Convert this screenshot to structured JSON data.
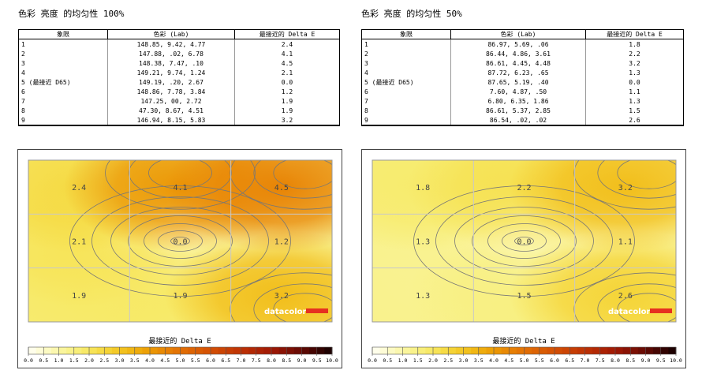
{
  "panels": [
    {
      "title": "色彩 亮度 的均匀性 100%",
      "table": {
        "headers": [
          "象限",
          "色彩 (Lab)",
          "最接近的 Delta E"
        ],
        "rows": [
          {
            "q": "1",
            "lab": "148.85,   9.42,   4.77",
            "de": "2.4"
          },
          {
            "q": "2",
            "lab": "147.88,    .02,   6.78",
            "de": "4.1"
          },
          {
            "q": "3",
            "lab": "148.38,   7.47,    .10",
            "de": "4.5"
          },
          {
            "q": "4",
            "lab": "149.21,   9.74,   1.24",
            "de": "2.1"
          },
          {
            "q": "5 (最接近 D65)",
            "lab": "149.19,    .20,   2.67",
            "de": "0.0"
          },
          {
            "q": "6",
            "lab": "148.86,   7.78,   3.84",
            "de": "1.2"
          },
          {
            "q": "7",
            "lab": "147.25,    00,   2.72",
            "de": "1.9"
          },
          {
            "q": "8",
            "lab": " 47.30,   8.67,   4.51",
            "de": "1.9"
          },
          {
            "q": "9",
            "lab": "146.94,   8.15,   5.83",
            "de": "3.2"
          }
        ]
      },
      "chart_data": {
        "type": "heatmap",
        "title": "最接近的 Delta E",
        "grid": [
          [
            2.4,
            4.1,
            4.5
          ],
          [
            2.1,
            0.0,
            1.2
          ],
          [
            1.9,
            1.9,
            3.2
          ]
        ],
        "scale_ticks": [
          "0.0",
          "0.5",
          "1.0",
          "1.5",
          "2.0",
          "2.5",
          "3.0",
          "3.5",
          "4.0",
          "4.5",
          "5.0",
          "5.5",
          "6.0",
          "6.5",
          "7.0",
          "7.5",
          "8.0",
          "8.5",
          "9.0",
          "9.5",
          "10.0"
        ],
        "range": [
          0,
          10
        ]
      },
      "logo": "datacolor"
    },
    {
      "title": "色彩 亮度 的均匀性 50%",
      "table": {
        "headers": [
          "象限",
          "色彩 (Lab)",
          "最接近的 Delta E"
        ],
        "rows": [
          {
            "q": "1",
            "lab": "86.97,   5.69,    .06",
            "de": "1.8"
          },
          {
            "q": "2",
            "lab": "86.44,   4.86,   3.61",
            "de": "2.2"
          },
          {
            "q": "3",
            "lab": "86.61,   4.45,   4.48",
            "de": "3.2"
          },
          {
            "q": "4",
            "lab": "87.72,   6.23,    .65",
            "de": "1.3"
          },
          {
            "q": "5 (最接近 D65)",
            "lab": "87.65,   5.19,    .40",
            "de": "0.0"
          },
          {
            "q": "6",
            "lab": " 7.60,   4.87,    .50",
            "de": "1.1"
          },
          {
            "q": "7",
            "lab": " 6.80,   6.35,   1.86",
            "de": "1.3"
          },
          {
            "q": "8",
            "lab": "86.61,   5.37,   2.85",
            "de": "1.5"
          },
          {
            "q": "9",
            "lab": "86.54,    .02,    .02",
            "de": "2.6"
          }
        ]
      },
      "chart_data": {
        "type": "heatmap",
        "title": "最接近的 Delta E",
        "grid": [
          [
            1.8,
            2.2,
            3.2
          ],
          [
            1.3,
            0.0,
            1.1
          ],
          [
            1.3,
            1.5,
            2.6
          ]
        ],
        "scale_ticks": [
          "0.0",
          "0.5",
          "1.0",
          "1.5",
          "2.0",
          "2.5",
          "3.0",
          "3.5",
          "4.0",
          "4.5",
          "5.0",
          "5.5",
          "6.0",
          "6.5",
          "7.0",
          "7.5",
          "8.0",
          "8.5",
          "9.0",
          "9.5",
          "10.0"
        ],
        "range": [
          0,
          10
        ]
      },
      "logo": "datacolor"
    }
  ]
}
